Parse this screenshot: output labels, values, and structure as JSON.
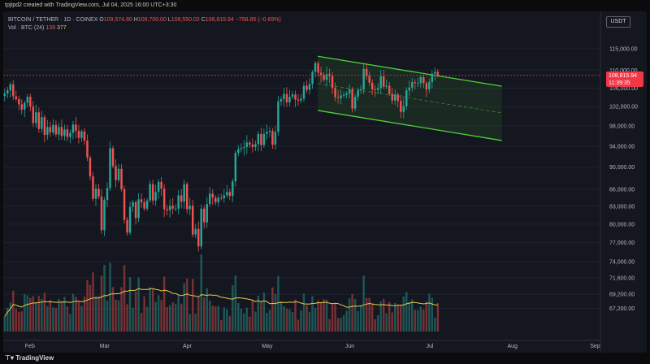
{
  "header": {
    "attribution": "tpjtpd2 created with TradingView.com, Jul 04, 2025 16:00 UTC+3:30"
  },
  "legend": {
    "symbol": "BITCOIN / TETHER · 1D · COINEX",
    "open_label": "O",
    "open": "109,574.80",
    "high_label": "H",
    "high": "109,700.00",
    "low_label": "L",
    "low": "108,550.02",
    "close_label": "C",
    "close": "108,815.94",
    "change": "−758.85 (−0.69%)",
    "vol_label": "Vol · BTC (24)",
    "vol_value": "139",
    "vol_ma": "377"
  },
  "currency_button": "USDT",
  "last_price": {
    "price": "108,815.94",
    "countdown": "11:39:35"
  },
  "footer": {
    "brand": "TradingView"
  },
  "colors": {
    "up": "#26a69a",
    "down": "#ef5350",
    "channel": "#4cd137",
    "vol_ma": "#e6c84a",
    "last": "#f23645"
  },
  "chart_data": {
    "type": "candlestick",
    "title": "BITCOIN / TETHER · 1D · COINEX",
    "x_axis_labels": [
      "Feb",
      "Mar",
      "Apr",
      "May",
      "Jun",
      "Jul",
      "Aug",
      "Sep"
    ],
    "y_axis_labels": [
      "115,000.00",
      "110,000.00",
      "106,000.00",
      "102,000.00",
      "98,000.00",
      "94,000.00",
      "90,000.00",
      "86,000.00",
      "83,000.00",
      "80,000.00",
      "77,000.00",
      "74,000.00",
      "71,600.00",
      "69,200.00",
      "67,200.00"
    ],
    "y_scale": "log",
    "ylim": [
      64500,
      118500
    ],
    "x_range": [
      "2025-01-22",
      "2025-09-03"
    ],
    "closes": [
      104800,
      105500,
      106800,
      104200,
      103600,
      102500,
      101400,
      102800,
      104100,
      102000,
      98600,
      100800,
      97400,
      99800,
      96200,
      97800,
      96700,
      98200,
      96300,
      97800,
      96000,
      97300,
      95800,
      96600,
      98300,
      97000,
      95600,
      96900,
      95100,
      91800,
      88300,
      84300,
      86100,
      84700,
      79000,
      84100,
      86200,
      93600,
      90200,
      87600,
      89700,
      86000,
      80700,
      78600,
      82900,
      83700,
      81000,
      84200,
      83700,
      82600,
      84000,
      86900,
      84000,
      85500,
      87300,
      86100,
      82500,
      82300,
      83100,
      82600,
      82600,
      84900,
      83800,
      86900,
      82500,
      83100,
      78300,
      79200,
      76400,
      82600,
      80300,
      83400,
      85200,
      84500,
      83700,
      84500,
      84400,
      84900,
      85500,
      84800,
      87400,
      92700,
      93400,
      93600,
      93800,
      94700,
      94300,
      93800,
      94400,
      96400,
      94200,
      96400,
      96800,
      97000,
      94300,
      96800,
      103100,
      103600,
      104700,
      102900,
      104100,
      104600,
      103500,
      103300,
      103700,
      106500,
      105600,
      106900,
      109600,
      111600,
      109400,
      108900,
      107800,
      109100,
      108700,
      106000,
      104000,
      103800,
      104400,
      104500,
      104800,
      105700,
      101600,
      104100,
      105500,
      105700,
      110300,
      108700,
      107200,
      105700,
      105600,
      106000,
      108600,
      106300,
      106500,
      104700,
      103300,
      104600,
      103200,
      100900,
      102100,
      105500,
      106100,
      107300,
      107100,
      107100,
      108400,
      107100,
      105700,
      107300,
      109200,
      109600,
      108815.94
    ],
    "volume_ma_note": "Vol · BTC (24) MA 377",
    "channel": {
      "upper": [
        [
          "2025-05-20",
          113200
        ],
        [
          "2025-07-28",
          106400
        ]
      ],
      "lower": [
        [
          "2025-05-20",
          101200
        ],
        [
          "2025-07-28",
          95100
        ]
      ],
      "midline": [
        [
          "2025-05-20",
          107000
        ],
        [
          "2025-07-28",
          100700
        ]
      ]
    },
    "last_price_line": 108815.94
  }
}
